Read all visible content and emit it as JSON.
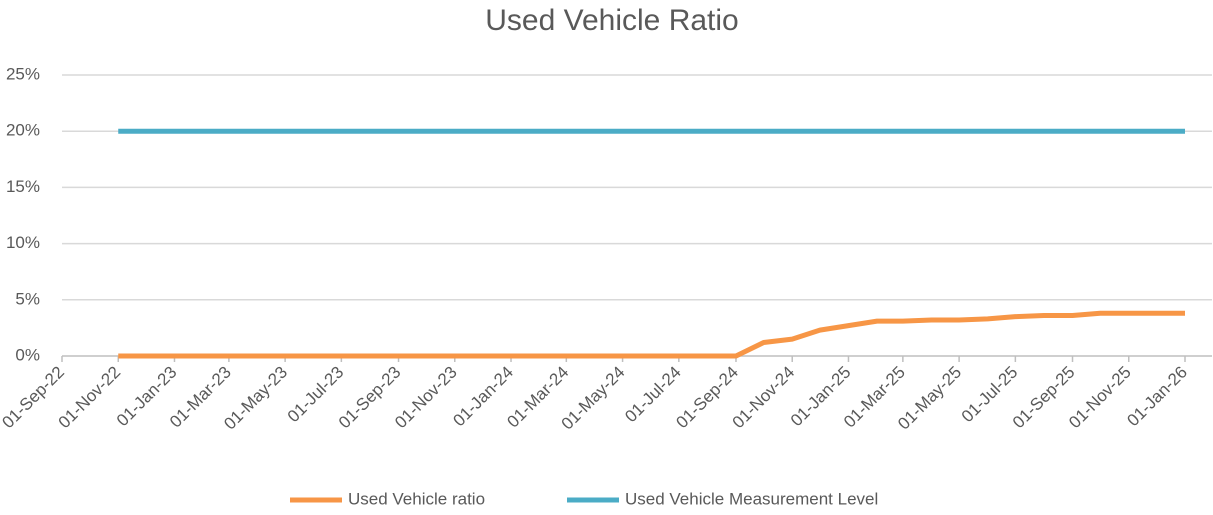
{
  "chart_data": {
    "type": "line",
    "title": "Used Vehicle Ratio",
    "x": [
      "2022-11-01",
      "2022-12-01",
      "2023-01-01",
      "2023-02-01",
      "2023-03-01",
      "2023-04-01",
      "2023-05-01",
      "2023-06-01",
      "2023-07-01",
      "2023-08-01",
      "2023-09-01",
      "2023-10-01",
      "2023-11-01",
      "2023-12-01",
      "2024-01-01",
      "2024-02-01",
      "2024-03-01",
      "2024-04-01",
      "2024-05-01",
      "2024-06-01",
      "2024-07-01",
      "2024-08-01",
      "2024-09-01",
      "2024-10-01",
      "2024-11-01",
      "2024-12-01",
      "2025-01-01",
      "2025-02-01",
      "2025-03-01",
      "2025-04-01",
      "2025-05-01",
      "2025-06-01",
      "2025-07-01",
      "2025-08-01",
      "2025-09-01",
      "2025-10-01",
      "2025-11-01",
      "2025-12-01",
      "2026-01-01"
    ],
    "series": [
      {
        "name": "Used Vehicle ratio",
        "color": "#f79646",
        "values": [
          0,
          0,
          0,
          0,
          0,
          0,
          0,
          0,
          0,
          0,
          0,
          0,
          0,
          0,
          0,
          0,
          0,
          0,
          0,
          0,
          0,
          0,
          0,
          1.2,
          1.5,
          2.3,
          2.7,
          3.1,
          3.1,
          3.2,
          3.2,
          3.3,
          3.5,
          3.6,
          3.6,
          3.8,
          3.8,
          3.8,
          3.8
        ]
      },
      {
        "name": "Used Vehicle Measurement Level",
        "color": "#4bacc6",
        "values": [
          20,
          20,
          20,
          20,
          20,
          20,
          20,
          20,
          20,
          20,
          20,
          20,
          20,
          20,
          20,
          20,
          20,
          20,
          20,
          20,
          20,
          20,
          20,
          20,
          20,
          20,
          20,
          20,
          20,
          20,
          20,
          20,
          20,
          20,
          20,
          20,
          20,
          20,
          20
        ]
      }
    ],
    "ylim": [
      0,
      25
    ],
    "yticks": [
      {
        "value": 0,
        "label": "0%"
      },
      {
        "value": 5,
        "label": "5%"
      },
      {
        "value": 10,
        "label": "10%"
      },
      {
        "value": 15,
        "label": "15%"
      },
      {
        "value": 20,
        "label": "20%"
      },
      {
        "value": 25,
        "label": "25%"
      }
    ],
    "xlim": [
      "2022-09-01",
      "2026-01-01"
    ],
    "xticks": [
      {
        "value": "2022-09-01",
        "label": "01-Sep-22"
      },
      {
        "value": "2022-11-01",
        "label": "01-Nov-22"
      },
      {
        "value": "2023-01-01",
        "label": "01-Jan-23"
      },
      {
        "value": "2023-03-01",
        "label": "01-Mar-23"
      },
      {
        "value": "2023-05-01",
        "label": "01-May-23"
      },
      {
        "value": "2023-07-01",
        "label": "01-Jul-23"
      },
      {
        "value": "2023-09-01",
        "label": "01-Sep-23"
      },
      {
        "value": "2023-11-01",
        "label": "01-Nov-23"
      },
      {
        "value": "2024-01-01",
        "label": "01-Jan-24"
      },
      {
        "value": "2024-03-01",
        "label": "01-Mar-24"
      },
      {
        "value": "2024-05-01",
        "label": "01-May-24"
      },
      {
        "value": "2024-07-01",
        "label": "01-Jul-24"
      },
      {
        "value": "2024-09-01",
        "label": "01-Sep-24"
      },
      {
        "value": "2024-11-01",
        "label": "01-Nov-24"
      },
      {
        "value": "2025-01-01",
        "label": "01-Jan-25"
      },
      {
        "value": "2025-03-01",
        "label": "01-Mar-25"
      },
      {
        "value": "2025-05-01",
        "label": "01-May-25"
      },
      {
        "value": "2025-07-01",
        "label": "01-Jul-25"
      },
      {
        "value": "2025-09-01",
        "label": "01-Sep-25"
      },
      {
        "value": "2025-11-01",
        "label": "01-Nov-25"
      },
      {
        "value": "2026-01-01",
        "label": "01-Jan-26"
      }
    ],
    "grid": true,
    "legend": "bottom"
  }
}
